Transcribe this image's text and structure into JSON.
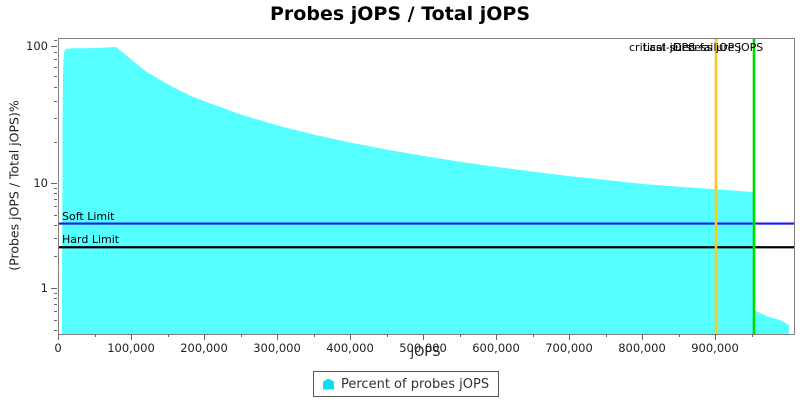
{
  "title": "Probes jOPS / Total jOPS",
  "legend": {
    "label": "Percent of probes jOPS"
  },
  "colors": {
    "area_fill": "#55FFFF",
    "legend_marker": "#00E5EE",
    "soft_limit_line": "#1515FF",
    "hard_limit_line": "#000000",
    "critical_line": "#FFC81E",
    "last_success_line": "#00DC00",
    "plot_border": "#808080",
    "tick": "#666666"
  },
  "chart_data": {
    "type": "area",
    "title": "Probes jOPS / Total jOPS",
    "xlabel": "jOPS",
    "ylabel": "(Probes jOPS / Total jOPS)%",
    "x_scale": "linear",
    "y_scale": "log",
    "xlim": [
      0,
      1007000
    ],
    "ylim": [
      0.37,
      114
    ],
    "grid": false,
    "legend_position": "bottom-center",
    "x_ticks": [
      {
        "value": 0,
        "label": "0"
      },
      {
        "value": 100000,
        "label": "100,000"
      },
      {
        "value": 200000,
        "label": "200,000"
      },
      {
        "value": 300000,
        "label": "300,000"
      },
      {
        "value": 400000,
        "label": "400,000"
      },
      {
        "value": 500000,
        "label": "500,000"
      },
      {
        "value": 600000,
        "label": "600,000"
      },
      {
        "value": 700000,
        "label": "700,000"
      },
      {
        "value": 800000,
        "label": "800,000"
      },
      {
        "value": 900000,
        "label": "900,000"
      }
    ],
    "x_minor_ticks": [
      50000,
      150000,
      250000,
      350000,
      450000,
      550000,
      650000,
      750000,
      850000,
      950000
    ],
    "y_ticks": [
      {
        "value": 100,
        "label": "100"
      },
      {
        "value": 10,
        "label": "10"
      },
      {
        "value": 1,
        "label": "1"
      }
    ],
    "y_minor_ticks": [
      110,
      90,
      80,
      70,
      60,
      50,
      40,
      30,
      20,
      9,
      8,
      7,
      6,
      5,
      4,
      3,
      2,
      0.9,
      0.8,
      0.7,
      0.6,
      0.5,
      0.4
    ],
    "series": [
      {
        "name": "Percent of probes jOPS",
        "points": [
          [
            4000,
            0.4
          ],
          [
            4500,
            5
          ],
          [
            5000,
            30
          ],
          [
            5500,
            60
          ],
          [
            6000,
            80
          ],
          [
            7000,
            93
          ],
          [
            10000,
            97
          ],
          [
            20000,
            98
          ],
          [
            40000,
            98
          ],
          [
            60000,
            99
          ],
          [
            78000,
            100
          ],
          [
            90000,
            89
          ],
          [
            100000,
            80
          ],
          [
            120000,
            66
          ],
          [
            150000,
            53
          ],
          [
            180000,
            44
          ],
          [
            200000,
            40
          ],
          [
            250000,
            32
          ],
          [
            300000,
            26.7
          ],
          [
            350000,
            22.9
          ],
          [
            400000,
            20
          ],
          [
            450000,
            17.8
          ],
          [
            500000,
            16
          ],
          [
            550000,
            14.5
          ],
          [
            600000,
            13.3
          ],
          [
            650000,
            12.3
          ],
          [
            700000,
            11.4
          ],
          [
            750000,
            10.7
          ],
          [
            800000,
            10
          ],
          [
            850000,
            9.4
          ],
          [
            900000,
            8.9
          ],
          [
            950000,
            8.4
          ],
          [
            952000,
            8.3
          ],
          [
            954000,
            0.62
          ],
          [
            970000,
            0.55
          ],
          [
            990000,
            0.5
          ],
          [
            1000000,
            0.45
          ]
        ]
      }
    ],
    "annotations": {
      "soft_limit": {
        "label": "Soft Limit",
        "pct": 4.2,
        "type": "hline"
      },
      "hard_limit": {
        "label": "Hard Limit",
        "pct": 2.5,
        "type": "hline"
      },
      "critical_jops": {
        "label": "critical-jOPS",
        "jops": 900000,
        "type": "vline"
      },
      "last_success": {
        "label": "Last success jOPS",
        "jops": 952000,
        "type": "vline"
      },
      "first_failure": {
        "label": "First failure jOPS",
        "jops": 956000,
        "type": "vline-label-only"
      }
    }
  }
}
